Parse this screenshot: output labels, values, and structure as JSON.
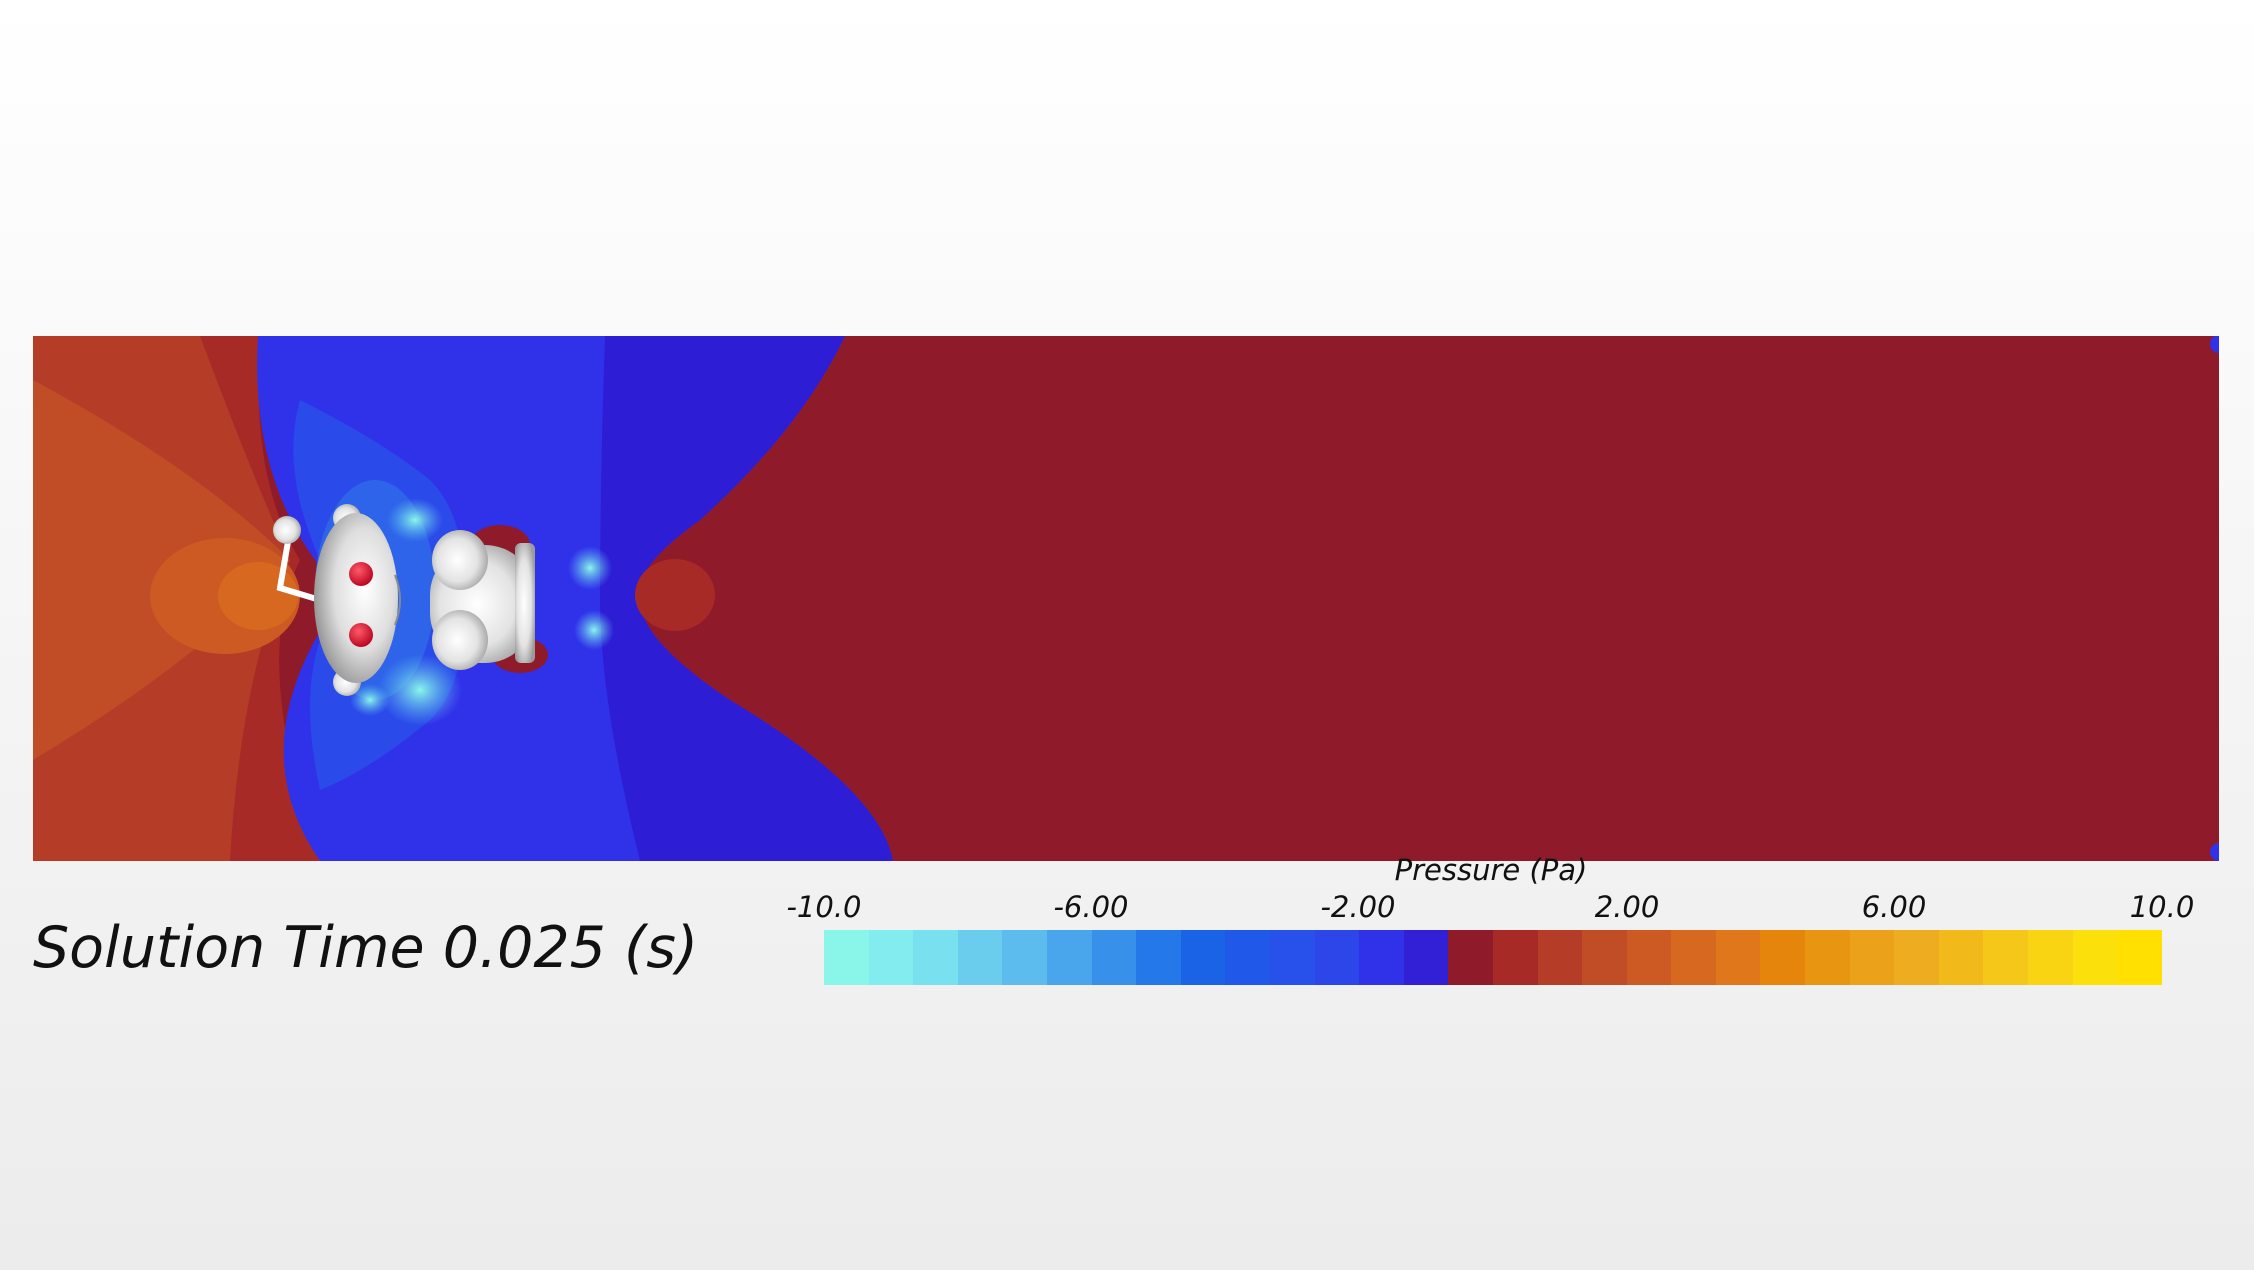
{
  "solution_time": "Solution Time 0.025 (s)",
  "legend": {
    "title": "Pressure (Pa)",
    "ticks": [
      "-10.0",
      "-6.00",
      "-2.00",
      "2.00",
      "6.00",
      "10.0"
    ],
    "range": [
      -10.0,
      10.0
    ],
    "colors": [
      "#8af6ea",
      "#82ecee",
      "#78e0ee",
      "#6acdee",
      "#5cbcee",
      "#4aa6ec",
      "#3790ea",
      "#2478ea",
      "#1a63e6",
      "#2058ea",
      "#2850ea",
      "#2c46ea",
      "#3032ea",
      "#3220d6",
      "#8f1a2a",
      "#a82a26",
      "#b53c26",
      "#c04d25",
      "#cd5a22",
      "#d6681f",
      "#e0771b",
      "#e5850c",
      "#e89511",
      "#eba11a",
      "#eead20",
      "#f1ba1a",
      "#f4c719",
      "#f8d412",
      "#fbe00b",
      "#ffe000"
    ]
  },
  "field_colors": {
    "free_stream": "#8f1a2a",
    "low_pressure_core": "#3032ea",
    "low_pressure_deep": "#2d1ed6",
    "stagnation": "#c0521f",
    "body": "#e8e8e8",
    "eyes": "#d01830"
  }
}
